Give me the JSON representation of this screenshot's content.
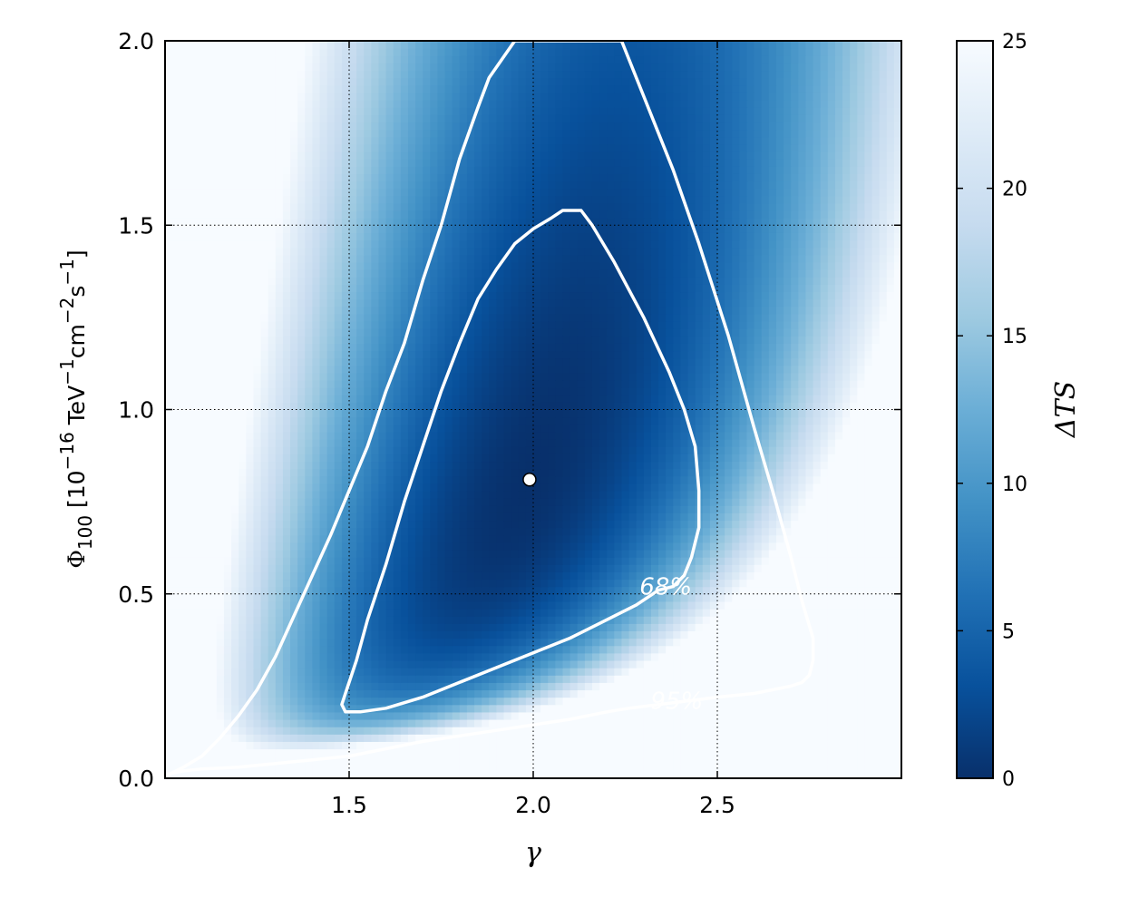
{
  "chart_data": {
    "type": "heatmap",
    "title": "",
    "xlabel": "γ",
    "ylabel": {
      "main": "Φ",
      "subscript": "100",
      "unit_open": " [10",
      "exp1": "−16",
      "unit_mid1": " TeV",
      "exp2": "−1",
      "unit_mid2": "cm",
      "exp3": "−2",
      "unit_mid3": "s",
      "exp4": "−1",
      "unit_close": "]"
    },
    "xlim": [
      1.0,
      3.0
    ],
    "ylim": [
      0.0,
      2.0
    ],
    "x_ticks": [
      1.5,
      2.0,
      2.5
    ],
    "x_tick_labels": [
      "1.5",
      "2.0",
      "2.5"
    ],
    "y_ticks": [
      0.0,
      0.5,
      1.0,
      1.5,
      2.0
    ],
    "y_tick_labels": [
      "0.0",
      "0.5",
      "1.0",
      "1.5",
      "2.0"
    ],
    "grid": true,
    "colorbar": {
      "label": "ΔTS",
      "range": [
        0,
        25
      ],
      "ticks": [
        0,
        5,
        10,
        15,
        20,
        25
      ],
      "tick_labels": [
        "0",
        "5",
        "10",
        "15",
        "20",
        "25"
      ],
      "colors": [
        "#08306b",
        "#08519c",
        "#2171b5",
        "#4292c6",
        "#6baed6",
        "#9ecae1",
        "#c6dbef",
        "#deebf7",
        "#f7fbff"
      ]
    },
    "best_fit": {
      "x": 1.99,
      "y": 0.81
    },
    "contours": [
      {
        "label": "68%",
        "label_at": {
          "x": 2.36,
          "y": 0.52
        },
        "points": [
          [
            1.51,
            0.18
          ],
          [
            1.53,
            0.18
          ],
          [
            1.6,
            0.19
          ],
          [
            1.7,
            0.22
          ],
          [
            1.8,
            0.26
          ],
          [
            1.9,
            0.3
          ],
          [
            2.0,
            0.34
          ],
          [
            2.1,
            0.38
          ],
          [
            2.18,
            0.42
          ],
          [
            2.28,
            0.47
          ],
          [
            2.34,
            0.51
          ],
          [
            2.38,
            0.52
          ],
          [
            2.41,
            0.55
          ],
          [
            2.43,
            0.6
          ],
          [
            2.45,
            0.68
          ],
          [
            2.45,
            0.78
          ],
          [
            2.44,
            0.9
          ],
          [
            2.41,
            1.0
          ],
          [
            2.37,
            1.1
          ],
          [
            2.3,
            1.25
          ],
          [
            2.22,
            1.4
          ],
          [
            2.16,
            1.5
          ],
          [
            2.13,
            1.54
          ],
          [
            2.08,
            1.54
          ],
          [
            2.05,
            1.52
          ],
          [
            2.0,
            1.49
          ],
          [
            1.95,
            1.45
          ],
          [
            1.9,
            1.38
          ],
          [
            1.85,
            1.3
          ],
          [
            1.8,
            1.18
          ],
          [
            1.75,
            1.05
          ],
          [
            1.7,
            0.9
          ],
          [
            1.65,
            0.75
          ],
          [
            1.6,
            0.58
          ],
          [
            1.55,
            0.43
          ],
          [
            1.52,
            0.32
          ],
          [
            1.49,
            0.23
          ],
          [
            1.48,
            0.2
          ],
          [
            1.49,
            0.18
          ],
          [
            1.51,
            0.18
          ]
        ]
      },
      {
        "label": "95%",
        "label_at": {
          "x": 2.39,
          "y": 0.21
        },
        "points": [
          [
            1.0,
            0.01
          ],
          [
            1.05,
            0.02
          ],
          [
            1.1,
            0.025
          ],
          [
            1.2,
            0.03
          ],
          [
            1.3,
            0.04
          ],
          [
            1.4,
            0.05
          ],
          [
            1.5,
            0.06
          ],
          [
            1.6,
            0.08
          ],
          [
            1.7,
            0.1
          ],
          [
            1.8,
            0.115
          ],
          [
            1.9,
            0.13
          ],
          [
            2.0,
            0.145
          ],
          [
            2.1,
            0.16
          ],
          [
            2.2,
            0.18
          ],
          [
            2.26,
            0.19
          ],
          [
            2.5,
            0.22
          ],
          [
            2.6,
            0.23
          ],
          [
            2.7,
            0.25
          ],
          [
            2.73,
            0.26
          ],
          [
            2.75,
            0.28
          ],
          [
            2.76,
            0.32
          ],
          [
            2.76,
            0.38
          ],
          [
            2.73,
            0.48
          ],
          [
            2.7,
            0.6
          ],
          [
            2.65,
            0.78
          ],
          [
            2.6,
            0.95
          ],
          [
            2.53,
            1.2
          ],
          [
            2.45,
            1.45
          ],
          [
            2.38,
            1.65
          ],
          [
            2.3,
            1.85
          ],
          [
            2.24,
            2.0
          ],
          [
            2.15,
            2.0
          ],
          [
            2.05,
            2.0
          ],
          [
            1.95,
            2.0
          ],
          [
            1.88,
            1.9
          ],
          [
            1.85,
            1.82
          ],
          [
            1.8,
            1.68
          ],
          [
            1.75,
            1.5
          ],
          [
            1.7,
            1.35
          ],
          [
            1.65,
            1.18
          ],
          [
            1.6,
            1.05
          ],
          [
            1.55,
            0.9
          ],
          [
            1.5,
            0.78
          ],
          [
            1.45,
            0.66
          ],
          [
            1.4,
            0.55
          ],
          [
            1.35,
            0.44
          ],
          [
            1.3,
            0.33
          ],
          [
            1.25,
            0.24
          ],
          [
            1.2,
            0.17
          ],
          [
            1.15,
            0.11
          ],
          [
            1.1,
            0.06
          ],
          [
            1.05,
            0.03
          ],
          [
            1.0,
            0.005
          ]
        ]
      }
    ]
  }
}
